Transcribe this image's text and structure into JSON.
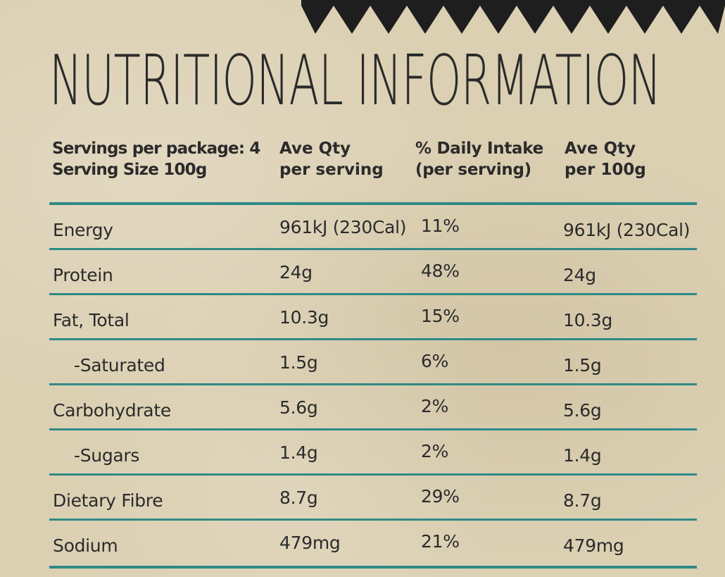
{
  "title": "NUTRITIONAL INFORMATION",
  "header": {
    "servings_line1": "Servings per package: 4",
    "servings_line2": "Serving Size 100g",
    "col_serving_line1": "Ave Qty",
    "col_serving_line2": "per serving",
    "col_di_line1": "% Daily Intake",
    "col_di_line2": "(per serving)",
    "col_100g_line1": "Ave Qty",
    "col_100g_line2": "per 100g"
  },
  "rows": [
    {
      "nutrient": "Energy",
      "per_serving": "961kJ (230Cal)",
      "daily_intake": "11%",
      "per_100g": "961kJ (230Cal)"
    },
    {
      "nutrient": "Protein",
      "per_serving": "24g",
      "daily_intake": "48%",
      "per_100g": "24g"
    },
    {
      "nutrient": "Fat, Total",
      "per_serving": "10.3g",
      "daily_intake": "15%",
      "per_100g": "10.3g"
    },
    {
      "nutrient": "-Saturated",
      "per_serving": "1.5g",
      "daily_intake": "6%",
      "per_100g": "1.5g"
    },
    {
      "nutrient": "Carbohydrate",
      "per_serving": "5.6g",
      "daily_intake": "2%",
      "per_100g": "5.6g"
    },
    {
      "nutrient": "-Sugars",
      "per_serving": "1.4g",
      "daily_intake": "2%",
      "per_100g": "1.4g"
    },
    {
      "nutrient": "Dietary Fibre",
      "per_serving": "8.7g",
      "daily_intake": "29%",
      "per_100g": "8.7g"
    },
    {
      "nutrient": "Sodium",
      "per_serving": "479mg",
      "daily_intake": "21%",
      "per_100g": "479mg"
    }
  ],
  "colors": {
    "background": "#dcd0b3",
    "text": "#2b2b2b",
    "rule": "#2f8a86",
    "zigzag": "#1e1e1e"
  }
}
